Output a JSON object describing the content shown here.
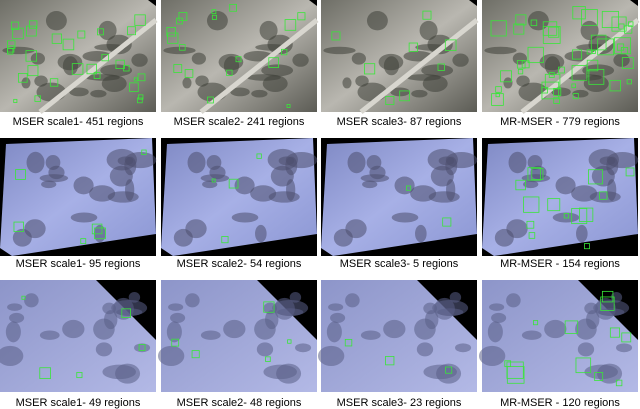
{
  "figure": {
    "rows": [
      {
        "captions": [
          "MSER scale1- 451 regions",
          "MSER scale2- 241 regions",
          "MSER scale3- 87 regions",
          "MR-MSER - 779 regions"
        ]
      },
      {
        "captions": [
          "MSER scale1- 95 regions",
          "MSER scale2- 54 regions",
          "MSER scale3- 5 regions",
          "MR-MSER - 154 regions"
        ]
      },
      {
        "captions": [
          "MSER scale1- 49 regions",
          "MSER scale2- 48 regions",
          "MSER scale3- 23 regions",
          "MR-MSER - 120 regions"
        ]
      }
    ]
  }
}
